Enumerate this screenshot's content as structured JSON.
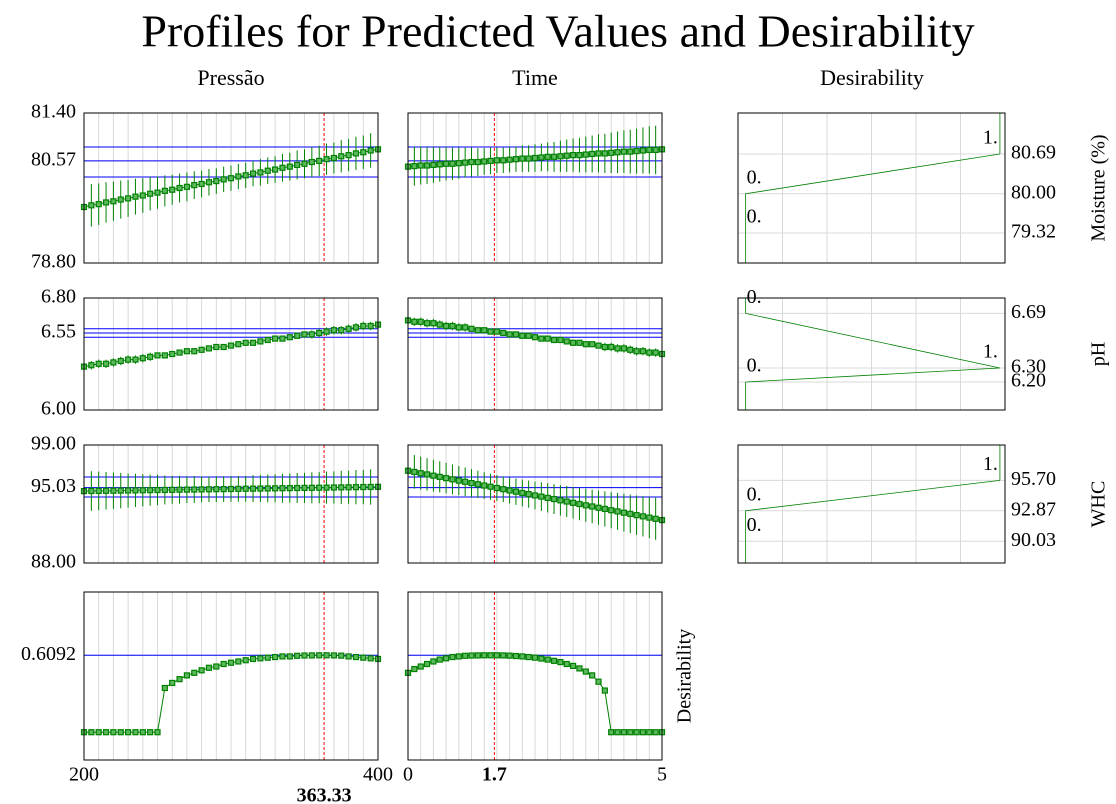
{
  "chart_data": {
    "type": "profiler",
    "title": "Profiles for Predicted Values and Desirability",
    "desirability_title": "Desirability",
    "color": "#008000",
    "interval_color": "#0000ff",
    "current_color": "#ff0000",
    "grid": true,
    "desirability_xlim": [
      -0.03,
      1.02
    ],
    "factors": [
      {
        "name": "Pressão",
        "xlim": [
          200,
          400
        ],
        "xticks": [
          200,
          400
        ],
        "current": 363.33,
        "x": [
          200,
          205,
          210,
          215,
          220,
          225,
          230,
          235,
          240,
          245,
          250,
          255,
          260,
          265,
          270,
          275,
          280,
          285,
          290,
          295,
          300,
          305,
          310,
          315,
          320,
          325,
          330,
          335,
          340,
          345,
          350,
          355,
          360,
          365,
          370,
          375,
          380,
          385,
          390,
          395,
          400
        ]
      },
      {
        "name": "Time",
        "xlim": [
          0,
          5
        ],
        "xticks": [
          0,
          5
        ],
        "current": 1.7,
        "x": [
          0,
          0.125,
          0.25,
          0.375,
          0.5,
          0.625,
          0.75,
          0.875,
          1,
          1.125,
          1.25,
          1.375,
          1.5,
          1.625,
          1.75,
          1.875,
          2,
          2.125,
          2.25,
          2.375,
          2.5,
          2.625,
          2.75,
          2.875,
          3,
          3.125,
          3.25,
          3.375,
          3.5,
          3.625,
          3.75,
          3.875,
          4,
          4.125,
          4.25,
          4.375,
          4.5,
          4.625,
          4.75,
          4.875,
          5
        ]
      }
    ],
    "responses": [
      {
        "name": "Moisture (%)",
        "ylim": [
          78.8,
          81.4
        ],
        "yticks": [
          {
            "value": 78.8,
            "label": "78.80"
          },
          80.57,
          {
            "value": 81.4,
            "label": "81.40"
          }
        ],
        "current_value": 80.57,
        "interval": [
          80.29,
          80.81
        ],
        "series": [
          {
            "values": [
              79.77,
              79.8,
              79.82,
              79.85,
              79.87,
              79.9,
              79.92,
              79.95,
              79.97,
              80,
              80.02,
              80.05,
              80.07,
              80.1,
              80.12,
              80.15,
              80.17,
              80.2,
              80.22,
              80.25,
              80.27,
              80.3,
              80.32,
              80.35,
              80.37,
              80.4,
              80.42,
              80.45,
              80.47,
              80.5,
              80.52,
              80.55,
              80.57,
              80.6,
              80.62,
              80.65,
              80.67,
              80.7,
              80.72,
              80.75,
              80.77
            ],
            "errors": [
              0.38,
              0.37,
              0.36,
              0.35,
              0.34,
              0.33,
              0.32,
              0.31,
              0.3,
              0.29,
              0.28,
              0.27,
              0.26,
              0.25,
              0.25,
              0.24,
              0.23,
              0.23,
              0.22,
              0.22,
              0.22,
              0.22,
              0.22,
              0.22,
              0.23,
              0.23,
              0.23,
              0.24,
              0.24,
              0.25,
              0.25,
              0.26,
              0.26,
              0.27,
              0.27,
              0.28,
              0.28,
              0.29,
              0.29,
              0.3,
              0.3
            ]
          },
          {
            "values": [
              80.47,
              80.48,
              80.49,
              80.49,
              80.5,
              80.51,
              80.52,
              80.52,
              80.53,
              80.54,
              80.55,
              80.55,
              80.56,
              80.57,
              80.58,
              80.58,
              80.59,
              80.6,
              80.61,
              80.61,
              80.62,
              80.63,
              80.64,
              80.64,
              80.65,
              80.66,
              80.67,
              80.67,
              80.68,
              80.69,
              80.7,
              80.7,
              80.71,
              80.72,
              80.73,
              80.73,
              80.74,
              80.75,
              80.76,
              80.76,
              80.77
            ],
            "errors": [
              0.35,
              0.34,
              0.33,
              0.32,
              0.31,
              0.3,
              0.29,
              0.28,
              0.27,
              0.26,
              0.25,
              0.24,
              0.23,
              0.23,
              0.22,
              0.22,
              0.22,
              0.22,
              0.23,
              0.23,
              0.24,
              0.24,
              0.25,
              0.26,
              0.27,
              0.28,
              0.29,
              0.3,
              0.31,
              0.32,
              0.33,
              0.34,
              0.35,
              0.36,
              0.37,
              0.38,
              0.39,
              0.4,
              0.41,
              0.42,
              0.43
            ]
          }
        ],
        "desirability": {
          "yticks": [
            79.32,
            {
              "value": 80,
              "label": "80.00"
            },
            80.69
          ],
          "y": [
            79.32,
            80,
            80.69
          ],
          "d": [
            0,
            0,
            1
          ],
          "labels": [
            "0.",
            "0.",
            "1."
          ]
        }
      },
      {
        "name": "pH",
        "ylim": [
          6,
          6.8
        ],
        "yticks": [
          {
            "value": 6,
            "label": "6.00"
          },
          6.55,
          {
            "value": 6.8,
            "label": "6.80"
          }
        ],
        "current_value": 6.55,
        "interval": [
          6.52,
          6.58
        ],
        "series": [
          {
            "values": [
              6.31,
              6.32,
              6.33,
              6.33,
              6.34,
              6.35,
              6.36,
              6.36,
              6.37,
              6.38,
              6.39,
              6.39,
              6.4,
              6.41,
              6.42,
              6.42,
              6.43,
              6.44,
              6.45,
              6.45,
              6.46,
              6.47,
              6.48,
              6.48,
              6.49,
              6.5,
              6.51,
              6.51,
              6.52,
              6.53,
              6.54,
              6.54,
              6.55,
              6.56,
              6.57,
              6.57,
              6.58,
              6.59,
              6.6,
              6.6,
              6.61
            ],
            "errors": [
              0.03,
              0.03,
              0.03,
              0.03,
              0.03,
              0.03,
              0.03,
              0.03,
              0.03,
              0.03,
              0.02,
              0.02,
              0.02,
              0.02,
              0.02,
              0.02,
              0.02,
              0.02,
              0.02,
              0.02,
              0.02,
              0.02,
              0.02,
              0.02,
              0.02,
              0.02,
              0.02,
              0.02,
              0.02,
              0.02,
              0.02,
              0.03,
              0.03,
              0.03,
              0.03,
              0.03,
              0.03,
              0.03,
              0.03,
              0.03,
              0.03
            ]
          },
          {
            "values": [
              6.64,
              6.63,
              6.63,
              6.62,
              6.62,
              6.61,
              6.6,
              6.6,
              6.59,
              6.59,
              6.58,
              6.57,
              6.57,
              6.56,
              6.56,
              6.55,
              6.54,
              6.54,
              6.53,
              6.53,
              6.52,
              6.51,
              6.51,
              6.5,
              6.5,
              6.49,
              6.48,
              6.48,
              6.47,
              6.47,
              6.46,
              6.45,
              6.45,
              6.44,
              6.44,
              6.43,
              6.42,
              6.42,
              6.41,
              6.41,
              6.4
            ],
            "errors": [
              0.03,
              0.03,
              0.03,
              0.03,
              0.03,
              0.03,
              0.03,
              0.03,
              0.03,
              0.03,
              0.02,
              0.02,
              0.02,
              0.02,
              0.02,
              0.02,
              0.02,
              0.02,
              0.02,
              0.02,
              0.02,
              0.02,
              0.02,
              0.02,
              0.02,
              0.02,
              0.02,
              0.02,
              0.02,
              0.02,
              0.02,
              0.03,
              0.03,
              0.03,
              0.03,
              0.03,
              0.03,
              0.03,
              0.03,
              0.03,
              0.03
            ]
          }
        ],
        "desirability": {
          "yticks": [
            {
              "value": 6.2,
              "label": "6.20"
            },
            {
              "value": 6.3,
              "label": "6.30"
            },
            6.69
          ],
          "y": [
            6.2,
            6.3,
            6.69
          ],
          "d": [
            0,
            1,
            0
          ],
          "labels": [
            "0.",
            "1.",
            "0."
          ]
        }
      },
      {
        "name": "WHC",
        "ylim": [
          88,
          99
        ],
        "yticks": [
          {
            "value": 88,
            "label": "88.00"
          },
          95.03,
          {
            "value": 99,
            "label": "99.00"
          }
        ],
        "current_value": 95.03,
        "interval": [
          94.15,
          96.02
        ],
        "series": [
          {
            "values": [
              94.7,
              94.71,
              94.72,
              94.73,
              94.74,
              94.75,
              94.76,
              94.77,
              94.78,
              94.79,
              94.8,
              94.81,
              94.82,
              94.83,
              94.84,
              94.85,
              94.86,
              94.87,
              94.88,
              94.89,
              94.9,
              94.91,
              94.92,
              94.93,
              94.94,
              94.95,
              94.96,
              94.97,
              94.98,
              94.99,
              95,
              95.01,
              95.02,
              95.03,
              95.04,
              95.05,
              95.06,
              95.07,
              95.08,
              95.09,
              95.1
            ],
            "errors": [
              1.9,
              1.85,
              1.8,
              1.75,
              1.7,
              1.65,
              1.6,
              1.55,
              1.5,
              1.45,
              1.4,
              1.35,
              1.3,
              1.3,
              1.25,
              1.25,
              1.2,
              1.2,
              1.2,
              1.2,
              1.2,
              1.2,
              1.2,
              1.25,
              1.25,
              1.3,
              1.3,
              1.35,
              1.35,
              1.4,
              1.4,
              1.45,
              1.45,
              1.5,
              1.5,
              1.55,
              1.55,
              1.6,
              1.6,
              1.65,
              1.65
            ]
          },
          {
            "values": [
              96.6,
              96.49,
              96.37,
              96.26,
              96.14,
              96.03,
              95.91,
              95.8,
              95.68,
              95.57,
              95.45,
              95.34,
              95.22,
              95.11,
              94.99,
              94.88,
              94.76,
              94.65,
              94.53,
              94.42,
              94.3,
              94.19,
              94.07,
              93.96,
              93.84,
              93.73,
              93.61,
              93.5,
              93.38,
              93.27,
              93.15,
              93.04,
              92.92,
              92.81,
              92.69,
              92.58,
              92.46,
              92.35,
              92.23,
              92.12,
              92
            ],
            "errors": [
              1.6,
              1.57,
              1.54,
              1.51,
              1.48,
              1.45,
              1.42,
              1.39,
              1.36,
              1.33,
              1.3,
              1.27,
              1.24,
              1.22,
              1.2,
              1.2,
              1.21,
              1.23,
              1.25,
              1.27,
              1.3,
              1.33,
              1.36,
              1.39,
              1.42,
              1.45,
              1.48,
              1.51,
              1.54,
              1.57,
              1.6,
              1.64,
              1.68,
              1.72,
              1.76,
              1.8,
              1.84,
              1.88,
              1.92,
              1.96,
              2
            ]
          }
        ],
        "desirability": {
          "yticks": [
            90.03,
            92.87,
            {
              "value": 95.7,
              "label": "95.70"
            }
          ],
          "y": [
            90.03,
            92.87,
            95.7
          ],
          "d": [
            0,
            0,
            1
          ],
          "labels": [
            "0.",
            "0.",
            "1."
          ]
        }
      }
    ],
    "overall": {
      "name": "Desirability",
      "ylim": [
        -0.22,
        1.11
      ],
      "yticks": [
        0.6092
      ],
      "current_value": 0.6092,
      "series": [
        {
          "values": [
            0,
            0,
            0,
            0,
            0,
            0,
            0,
            0,
            0,
            0,
            0,
            0.35,
            0.39,
            0.42,
            0.45,
            0.47,
            0.49,
            0.51,
            0.52,
            0.54,
            0.55,
            0.56,
            0.57,
            0.58,
            0.585,
            0.59,
            0.595,
            0.6,
            0.6,
            0.605,
            0.607,
            0.608,
            0.609,
            0.609,
            0.608,
            0.606,
            0.6,
            0.595,
            0.59,
            0.585,
            0.58
          ]
        },
        {
          "values": [
            0.47,
            0.5,
            0.52,
            0.54,
            0.56,
            0.575,
            0.585,
            0.595,
            0.6,
            0.605,
            0.607,
            0.608,
            0.609,
            0.609,
            0.609,
            0.608,
            0.606,
            0.603,
            0.6,
            0.595,
            0.59,
            0.583,
            0.575,
            0.565,
            0.555,
            0.54,
            0.525,
            0.505,
            0.48,
            0.45,
            0.4,
            0.33,
            0,
            0,
            0,
            0,
            0,
            0,
            0,
            0,
            0
          ]
        }
      ]
    }
  }
}
